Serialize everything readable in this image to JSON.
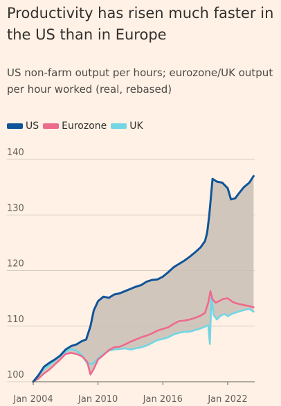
{
  "chart_data": {
    "type": "line",
    "title": "Productivity has risen much faster in the US than in Europe",
    "subtitle": "US non-farm output per hours; eurozone/UK output per hour worked (real, rebased)",
    "xlabel": "",
    "ylabel": "",
    "xlim": [
      2004,
      2024.5
    ],
    "ylim": [
      100,
      140
    ],
    "yticks": [
      100,
      110,
      120,
      130,
      140
    ],
    "yticklabels": [
      "100",
      "110",
      "120",
      "130",
      "140"
    ],
    "xticks": [
      2004,
      2010,
      2016,
      2022
    ],
    "xticklabels": [
      "Jan 2004",
      "Jan 2010",
      "Jan 2016",
      "Jan 2022"
    ],
    "grid": "horizontal",
    "legend_placement": "top-left",
    "shading": "area between US and Europe series",
    "series": [
      {
        "name": "US",
        "color": "#0f5499",
        "x": [
          2004.0,
          2004.5,
          2005.0,
          2005.5,
          2006.0,
          2006.5,
          2007.0,
          2007.5,
          2008.0,
          2008.5,
          2008.9,
          2009.3,
          2009.6,
          2010.0,
          2010.5,
          2011.0,
          2011.5,
          2012.0,
          2012.5,
          2013.0,
          2013.5,
          2014.0,
          2014.5,
          2015.0,
          2015.5,
          2016.0,
          2016.5,
          2017.0,
          2017.5,
          2018.0,
          2018.5,
          2019.0,
          2019.5,
          2019.9,
          2020.1,
          2020.3,
          2020.6,
          2021.0,
          2021.5,
          2022.0,
          2022.3,
          2022.7,
          2023.0,
          2023.5,
          2024.0,
          2024.4
        ],
        "values": [
          100.0,
          101.2,
          102.7,
          103.4,
          104.0,
          104.7,
          105.8,
          106.4,
          106.7,
          107.3,
          107.6,
          110.0,
          112.8,
          114.5,
          115.3,
          115.1,
          115.7,
          115.9,
          116.3,
          116.7,
          117.1,
          117.4,
          118.0,
          118.3,
          118.4,
          118.9,
          119.7,
          120.6,
          121.2,
          121.8,
          122.5,
          123.3,
          124.2,
          125.3,
          126.8,
          130.0,
          136.5,
          136.0,
          135.8,
          134.8,
          132.8,
          133.0,
          133.8,
          135.0,
          135.8,
          137.0
        ]
      },
      {
        "name": "Eurozone",
        "color": "#ed6a8f",
        "x": [
          2004.0,
          2004.5,
          2005.0,
          2005.5,
          2006.0,
          2006.5,
          2007.0,
          2007.5,
          2008.0,
          2008.5,
          2009.0,
          2009.3,
          2009.6,
          2010.0,
          2010.5,
          2011.0,
          2011.5,
          2012.0,
          2012.5,
          2013.0,
          2013.5,
          2014.0,
          2014.5,
          2015.0,
          2015.5,
          2016.0,
          2016.5,
          2017.0,
          2017.5,
          2018.0,
          2018.5,
          2019.0,
          2019.5,
          2019.9,
          2020.2,
          2020.4,
          2020.6,
          2020.9,
          2021.2,
          2021.6,
          2022.0,
          2022.5,
          2023.0,
          2023.5,
          2024.0,
          2024.4
        ],
        "values": [
          100.0,
          100.6,
          101.5,
          102.2,
          103.1,
          104.0,
          105.0,
          105.2,
          105.0,
          104.6,
          103.6,
          101.3,
          102.3,
          104.0,
          104.8,
          105.7,
          106.2,
          106.3,
          106.7,
          107.2,
          107.6,
          108.0,
          108.3,
          108.7,
          109.2,
          109.5,
          109.8,
          110.4,
          110.9,
          111.0,
          111.2,
          111.5,
          111.9,
          112.4,
          114.2,
          116.3,
          114.8,
          114.2,
          114.5,
          114.9,
          115.0,
          114.3,
          114.0,
          113.8,
          113.6,
          113.4
        ]
      },
      {
        "name": "UK",
        "color": "#72d6e4",
        "x": [
          2004.0,
          2004.5,
          2005.0,
          2005.5,
          2006.0,
          2006.5,
          2007.0,
          2007.5,
          2008.0,
          2008.5,
          2009.0,
          2009.5,
          2010.0,
          2010.5,
          2011.0,
          2011.5,
          2012.0,
          2012.5,
          2013.0,
          2013.5,
          2014.0,
          2014.5,
          2015.0,
          2015.5,
          2016.0,
          2016.5,
          2017.0,
          2017.5,
          2018.0,
          2018.5,
          2019.0,
          2019.5,
          2019.9,
          2020.2,
          2020.35,
          2020.5,
          2020.7,
          2021.0,
          2021.3,
          2021.7,
          2022.0,
          2022.5,
          2023.0,
          2023.5,
          2024.0,
          2024.4
        ],
        "values": [
          100.0,
          101.3,
          102.3,
          103.0,
          103.8,
          104.7,
          105.4,
          105.9,
          105.6,
          104.8,
          103.3,
          103.2,
          104.2,
          105.0,
          105.6,
          105.8,
          105.9,
          106.0,
          105.8,
          106.0,
          106.2,
          106.5,
          107.0,
          107.5,
          107.7,
          108.0,
          108.5,
          108.8,
          109.0,
          109.0,
          109.3,
          109.6,
          109.9,
          110.2,
          106.8,
          115.3,
          112.0,
          111.2,
          111.8,
          112.2,
          111.8,
          112.3,
          112.6,
          112.9,
          113.1,
          112.6
        ]
      }
    ]
  }
}
